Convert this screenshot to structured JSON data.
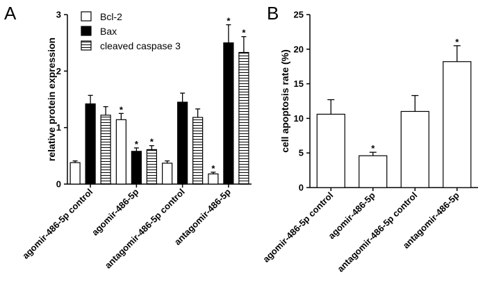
{
  "chart_data": [
    {
      "panel": "A",
      "type": "bar",
      "ylabel": "relative protein expression",
      "ylim": [
        0,
        3
      ],
      "yticks": [
        "0",
        "1",
        "2",
        "3"
      ],
      "categories": [
        "agomir-486-5p control",
        "agomir-486-5p",
        "antagomir-486-5p control",
        "antagomir-486-5p"
      ],
      "series": [
        {
          "name": "Bcl-2",
          "fill": "white",
          "values": [
            0.38,
            1.14,
            0.37,
            0.18
          ],
          "errors": [
            0.03,
            0.11,
            0.04,
            0.03
          ],
          "significant": [
            false,
            true,
            false,
            true
          ]
        },
        {
          "name": "Bax",
          "fill": "black",
          "values": [
            1.42,
            0.58,
            1.45,
            2.5
          ],
          "errors": [
            0.15,
            0.06,
            0.16,
            0.32
          ],
          "significant": [
            false,
            true,
            false,
            true
          ]
        },
        {
          "name": "cleaved caspase 3",
          "fill": "horizontal-stripes",
          "values": [
            1.22,
            0.61,
            1.18,
            2.33
          ],
          "errors": [
            0.15,
            0.07,
            0.15,
            0.28
          ],
          "significant": [
            false,
            true,
            false,
            true
          ]
        }
      ],
      "significance_marker": "*",
      "grid": false,
      "legend_position": "top-left"
    },
    {
      "panel": "B",
      "type": "bar",
      "ylabel": "cell apoptosis rate (%)",
      "ylim": [
        0,
        25
      ],
      "yticks": [
        "0",
        "5",
        "10",
        "15",
        "20",
        "25"
      ],
      "categories": [
        "agomir-486-5p control",
        "agomir-486-5p",
        "antagomir-486-5p control",
        "antagomir-486-5p"
      ],
      "series": [
        {
          "name": "",
          "fill": "white",
          "values": [
            10.6,
            4.6,
            11.0,
            18.2
          ],
          "errors": [
            2.1,
            0.5,
            2.3,
            2.3
          ],
          "significant": [
            false,
            true,
            false,
            true
          ]
        }
      ],
      "significance_marker": "*",
      "grid": false
    }
  ]
}
